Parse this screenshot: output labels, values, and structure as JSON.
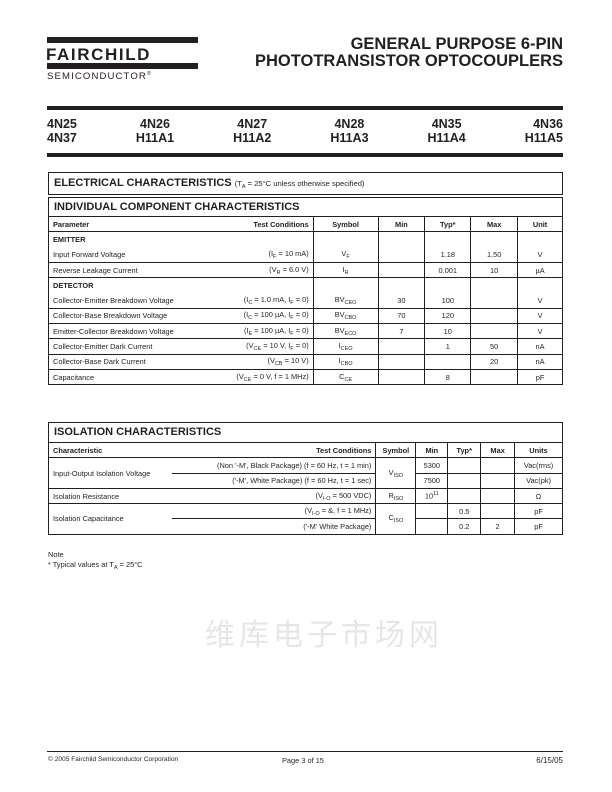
{
  "logo": {
    "name": "FAIRCHILD",
    "sub": "SEMICONDUCTOR",
    "reg": "®"
  },
  "title": {
    "line1": "GENERAL PURPOSE 6-PIN",
    "line2": "PHOTOTRANSISTOR OPTOCOUPLERS"
  },
  "parts": [
    [
      "4N25",
      "4N37"
    ],
    [
      "4N26",
      "H11A1"
    ],
    [
      "4N27",
      "H11A2"
    ],
    [
      "4N28",
      "H11A3"
    ],
    [
      "4N35",
      "H11A4"
    ],
    [
      "4N36",
      "H11A5"
    ]
  ],
  "electrical": {
    "title": "ELECTRICAL CHARACTERISTICS",
    "condition": [
      "(T",
      {
        "sub": "A"
      },
      " = 25°C unless otherwise specified)"
    ]
  },
  "individual": {
    "title": "INDIVIDUAL COMPONENT CHARACTERISTICS",
    "headers": [
      "Parameter",
      "Test Conditions",
      "Symbol",
      "Min",
      "Typ*",
      "Max",
      "Unit"
    ],
    "rows": [
      {
        "section": "EMITTER"
      },
      {
        "param": "Input Forward Voltage",
        "cond": [
          "(I",
          {
            "sub": "F"
          },
          " = 10 mA)"
        ],
        "sym": [
          "V",
          {
            "sub": "F"
          }
        ],
        "min": "",
        "typ": "1.18",
        "max": "1.50",
        "unit": "V"
      },
      {
        "param": "Reverse Leakage Current",
        "cond": [
          "(V",
          {
            "sub": "R"
          },
          " = 6.0 V)"
        ],
        "sym": [
          "I",
          {
            "sub": "R"
          }
        ],
        "min": "",
        "typ": "0.001",
        "max": "10",
        "unit": "µA"
      },
      {
        "section": "DETECTOR"
      },
      {
        "param": "Collector-Emitter Breakdown Voltage",
        "cond": [
          "(I",
          {
            "sub": "C"
          },
          " = 1.0 mA, I",
          {
            "sub": "F"
          },
          " = 0)"
        ],
        "sym": [
          "BV",
          {
            "sub": "CEO"
          }
        ],
        "min": "30",
        "typ": "100",
        "max": "",
        "unit": "V"
      },
      {
        "param": "Collector-Base Breakdown Voltage",
        "cond": [
          "(I",
          {
            "sub": "C"
          },
          " = 100 µA, I",
          {
            "sub": "F"
          },
          " = 0)"
        ],
        "sym": [
          "BV",
          {
            "sub": "CBO"
          }
        ],
        "min": "70",
        "typ": "120",
        "max": "",
        "unit": "V"
      },
      {
        "param": "Emitter-Collector Breakdown Voltage",
        "cond": [
          "(I",
          {
            "sub": "E"
          },
          " = 100 µA, I",
          {
            "sub": "F"
          },
          " = 0)"
        ],
        "sym": [
          "BV",
          {
            "sub": "ECO"
          }
        ],
        "min": "7",
        "typ": "10",
        "max": "",
        "unit": "V"
      },
      {
        "param": "Collector-Emitter Dark Current",
        "cond": [
          "(V",
          {
            "sub": "CE"
          },
          " = 10 V, I",
          {
            "sub": "F"
          },
          " = 0)"
        ],
        "sym": [
          "I",
          {
            "sub": "CEO"
          }
        ],
        "min": "",
        "typ": "1",
        "max": "50",
        "unit": "nA"
      },
      {
        "param": "Collector-Base Dark Current",
        "cond": [
          "(V",
          {
            "sub": "CB"
          },
          " = 10 V)"
        ],
        "sym": [
          "I",
          {
            "sub": "CBO"
          }
        ],
        "min": "",
        "typ": "",
        "max": "20",
        "unit": "nA"
      },
      {
        "param": "Capacitance",
        "cond": [
          "(V",
          {
            "sub": "CE"
          },
          " = 0 V, f = 1 MHz)"
        ],
        "sym": [
          "C",
          {
            "sub": "CE"
          }
        ],
        "min": "",
        "typ": "8",
        "max": "",
        "unit": "pF"
      }
    ]
  },
  "watermark": "维库电子市场网",
  "isolation": {
    "title": "ISOLATION CHARACTERISTICS",
    "headers": [
      "Characteristic",
      "Test Conditions",
      "Symbol",
      "Min",
      "Typ*",
      "Max",
      "Units"
    ],
    "groups": [
      {
        "param": "Input-Output Isolation Voltage",
        "sym": [
          "V",
          {
            "sub": "ISO"
          }
        ],
        "rows": [
          {
            "cond": [
              "(Non '-M', Black Package) (f = 60 Hz, t = 1 min)"
            ],
            "min": "5300",
            "typ": "",
            "max": "",
            "unit": "Vac(rms)"
          },
          {
            "cond": [
              "('-M', White Package) (f = 60 Hz, t = 1 sec)"
            ],
            "min": "7500",
            "typ": "",
            "max": "",
            "unit": "Vac(pk)"
          }
        ]
      },
      {
        "param": "Isolation Resistance",
        "sym": [
          "R",
          {
            "sub": "ISO"
          }
        ],
        "rows": [
          {
            "cond": [
              "(V",
              {
                "sub": "I-O"
              },
              " = 500 VDC)"
            ],
            "min": [
              "10",
              {
                "sup": "11"
              }
            ],
            "typ": "",
            "max": "",
            "unit": "Ω"
          }
        ]
      },
      {
        "param": "Isolation Capacitance",
        "sym": [
          "C",
          {
            "sub": "ISO"
          }
        ],
        "rows": [
          {
            "cond": [
              "(V",
              {
                "sub": "I-O"
              },
              " = &, f = 1 MHz)"
            ],
            "min": "",
            "typ": "0.5",
            "max": "",
            "unit": "pF"
          },
          {
            "cond": [
              "('-M' White Package)"
            ],
            "min": "",
            "typ": "0.2",
            "max": "2",
            "unit": "pF"
          }
        ]
      }
    ]
  },
  "note": {
    "label": "Note",
    "text": [
      "* Typical values at T",
      {
        "sub": "A"
      },
      " = 25°C"
    ]
  },
  "footer": {
    "copyright": "© 2005 Fairchild Semiconductor Corporation",
    "page": "Page 3 of 15",
    "date": "6/15/05"
  }
}
